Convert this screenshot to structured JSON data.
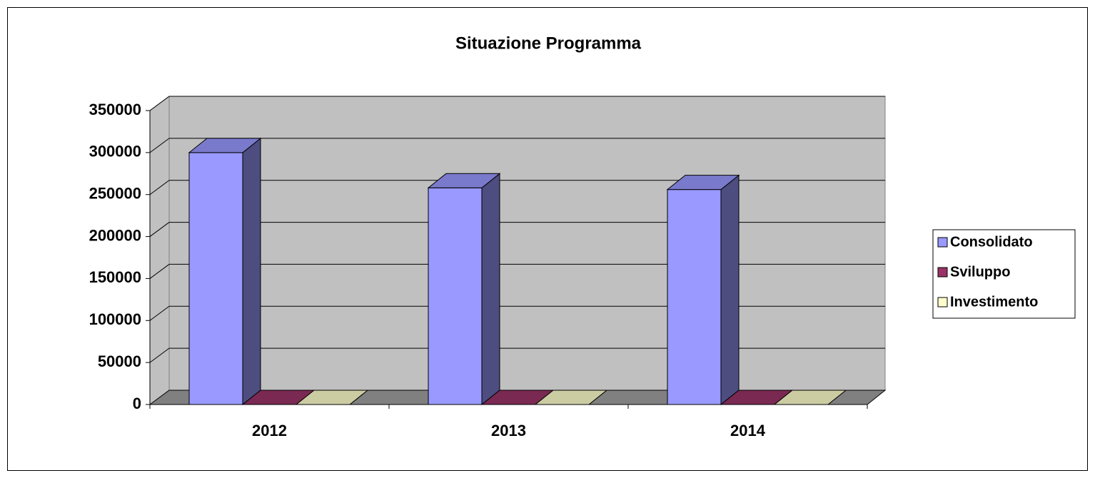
{
  "chart_data": {
    "type": "bar3d",
    "title": "Situazione Programma",
    "categories": [
      "2012",
      "2013",
      "2014"
    ],
    "series": [
      {
        "name": "Consolidato",
        "color": "#9999ff",
        "values": [
          300000,
          258000,
          256000
        ]
      },
      {
        "name": "Sviluppo",
        "color": "#993366",
        "values": [
          0,
          0,
          0
        ]
      },
      {
        "name": "Investimento",
        "color": "#ffffcc",
        "values": [
          0,
          0,
          0
        ]
      }
    ],
    "ylim": [
      0,
      350000
    ],
    "yticks": [
      0,
      50000,
      100000,
      150000,
      200000,
      250000,
      300000,
      350000
    ],
    "grid": true,
    "legend": "right"
  }
}
